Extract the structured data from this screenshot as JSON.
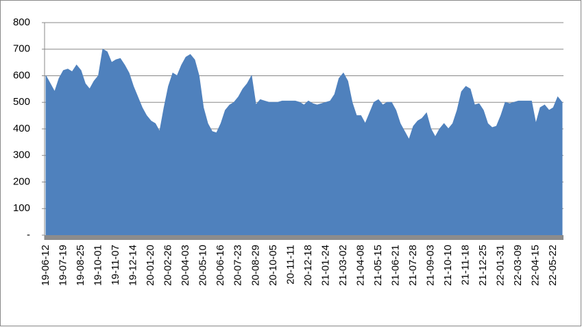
{
  "chart_data": {
    "type": "area",
    "color": "#4f81bd",
    "grid": true,
    "ylim": [
      0,
      800
    ],
    "yticks": [
      {
        "value": 0,
        "label": "-"
      },
      100,
      200,
      300,
      400,
      500,
      600,
      700,
      800
    ],
    "categories": [
      "19-06-12",
      null,
      null,
      null,
      "19-07-19",
      null,
      null,
      null,
      "19-08-25",
      null,
      null,
      null,
      "19-10-01",
      null,
      null,
      null,
      "19-11-07",
      null,
      null,
      null,
      "19-12-14",
      null,
      null,
      null,
      "20-01-20",
      null,
      null,
      null,
      "20-02-26",
      null,
      null,
      null,
      "20-04-03",
      null,
      null,
      null,
      "20-05-10",
      null,
      null,
      null,
      "20-06-16",
      null,
      null,
      null,
      "20-07-23",
      null,
      null,
      null,
      "20-08-29",
      null,
      null,
      null,
      "20-10-05",
      null,
      null,
      null,
      "20-11-11",
      null,
      null,
      null,
      "20-12-18",
      null,
      null,
      null,
      "21-01-24",
      null,
      null,
      null,
      "21-03-02",
      null,
      null,
      null,
      "21-04-08",
      null,
      null,
      null,
      "21-05-15",
      null,
      null,
      null,
      "21-06-21",
      null,
      null,
      null,
      "21-07-28",
      null,
      null,
      null,
      "21-09-03",
      null,
      null,
      null,
      "21-10-10",
      null,
      null,
      null,
      "21-11-18",
      null,
      null,
      null,
      "21-12-25",
      null,
      null,
      null,
      "22-01-31",
      null,
      null,
      null,
      "22-03-09",
      null,
      null,
      null,
      "22-04-15",
      null,
      null,
      null,
      "22-05-22",
      null,
      null
    ],
    "values": [
      600,
      570,
      540,
      590,
      620,
      625,
      615,
      640,
      620,
      570,
      550,
      580,
      600,
      700,
      690,
      650,
      660,
      665,
      640,
      610,
      560,
      520,
      480,
      450,
      430,
      420,
      390,
      480,
      560,
      610,
      600,
      640,
      670,
      680,
      660,
      600,
      480,
      420,
      390,
      385,
      420,
      470,
      490,
      500,
      520,
      550,
      570,
      600,
      490,
      510,
      505,
      500,
      500,
      500,
      505,
      505,
      505,
      505,
      500,
      490,
      505,
      495,
      490,
      495,
      500,
      505,
      530,
      590,
      610,
      580,
      500,
      450,
      450,
      420,
      460,
      500,
      510,
      490,
      500,
      500,
      470,
      420,
      390,
      360,
      410,
      430,
      440,
      460,
      400,
      370,
      400,
      420,
      400,
      420,
      470,
      540,
      560,
      550,
      490,
      495,
      470,
      420,
      405,
      410,
      450,
      500,
      495,
      500,
      505,
      505,
      505,
      505,
      420,
      480,
      490,
      470,
      480,
      520,
      500
    ]
  }
}
